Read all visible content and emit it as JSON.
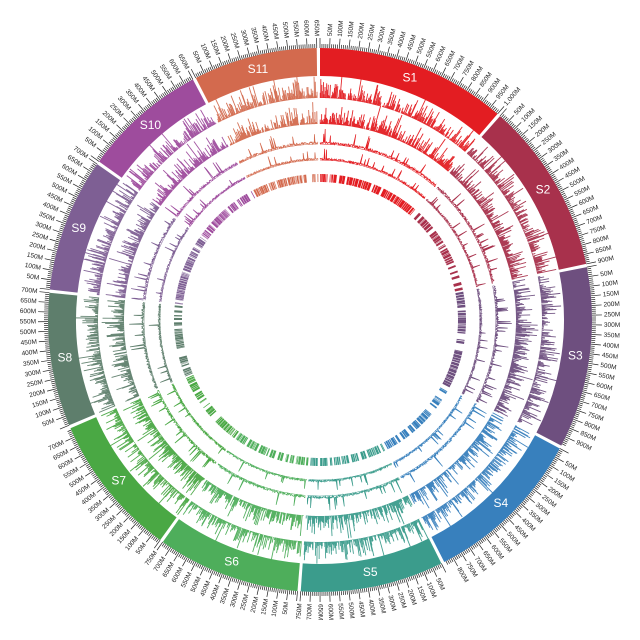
{
  "chart_data": {
    "type": "circos",
    "tick_suffix": "M",
    "chromosomes": [
      {
        "name": "S1",
        "length": 1000,
        "color": "#e31d22",
        "ticks": [
          "50M",
          "100M",
          "150M",
          "200M",
          "250M",
          "300M",
          "350M",
          "400M",
          "450M",
          "500M",
          "550M",
          "600M",
          "650M",
          "700M",
          "750M",
          "800M",
          "850M",
          "900M",
          "950M",
          "1,000M"
        ]
      },
      {
        "name": "S2",
        "length": 900,
        "color": "#a8314c",
        "ticks": [
          "50M",
          "100M",
          "150M",
          "200M",
          "250M",
          "300M",
          "350M",
          "400M",
          "450M",
          "500M",
          "550M",
          "600M",
          "650M",
          "700M",
          "750M",
          "800M",
          "850M",
          "900M"
        ]
      },
      {
        "name": "S3",
        "length": 950,
        "color": "#6e4f7f",
        "ticks": [
          "50M",
          "100M",
          "150M",
          "200M",
          "250M",
          "300M",
          "350M",
          "400M",
          "450M",
          "500M",
          "550M",
          "600M",
          "650M",
          "700M",
          "750M",
          "800M",
          "850M",
          "900M"
        ]
      },
      {
        "name": "S4",
        "length": 850,
        "color": "#3880bd",
        "ticks": [
          "50M",
          "100M",
          "150M",
          "200M",
          "250M",
          "300M",
          "350M",
          "400M",
          "450M",
          "500M",
          "550M",
          "600M",
          "650M",
          "700M",
          "750M",
          "800M"
        ]
      },
      {
        "name": "S5",
        "length": 750,
        "color": "#3b9c8c",
        "ticks": [
          "50M",
          "100M",
          "150M",
          "200M",
          "250M",
          "300M",
          "350M",
          "400M",
          "450M",
          "500M",
          "550M",
          "600M",
          "650M",
          "700M",
          "750M"
        ]
      },
      {
        "name": "S6",
        "length": 750,
        "color": "#4eae5b",
        "ticks": [
          "50M",
          "100M",
          "150M",
          "200M",
          "250M",
          "300M",
          "350M",
          "400M",
          "450M",
          "500M",
          "550M",
          "600M",
          "650M",
          "700M",
          "750M"
        ]
      },
      {
        "name": "S7",
        "length": 750,
        "color": "#4aa844",
        "ticks": [
          "50M",
          "100M",
          "150M",
          "200M",
          "250M",
          "300M",
          "350M",
          "400M",
          "450M",
          "500M",
          "550M",
          "600M",
          "650M",
          "700M"
        ]
      },
      {
        "name": "S8",
        "length": 700,
        "color": "#5e7e6c",
        "ticks": [
          "50M",
          "100M",
          "150M",
          "200M",
          "250M",
          "300M",
          "350M",
          "400M",
          "450M",
          "500M",
          "550M",
          "600M",
          "650M",
          "700M"
        ]
      },
      {
        "name": "S9",
        "length": 700,
        "color": "#7e5f94",
        "ticks": [
          "50M",
          "100M",
          "150M",
          "200M",
          "250M",
          "300M",
          "350M",
          "400M",
          "450M",
          "500M",
          "550M",
          "600M",
          "650M",
          "700M"
        ]
      },
      {
        "name": "S10",
        "length": 650,
        "color": "#9e4c9d",
        "ticks": [
          "50M",
          "100M",
          "150M",
          "200M",
          "250M",
          "300M",
          "350M",
          "400M",
          "450M",
          "500M",
          "550M",
          "600M",
          "650M"
        ]
      },
      {
        "name": "S11",
        "length": 650,
        "color": "#d36a4e",
        "ticks": [
          "50M",
          "100M",
          "150M",
          "200M",
          "250M",
          "300M",
          "350M",
          "400M",
          "450M",
          "500M",
          "550M",
          "600M",
          "650M"
        ]
      }
    ],
    "tracks": [
      "histogram",
      "histogram",
      "line",
      "line",
      "heatmap-blocks"
    ]
  }
}
